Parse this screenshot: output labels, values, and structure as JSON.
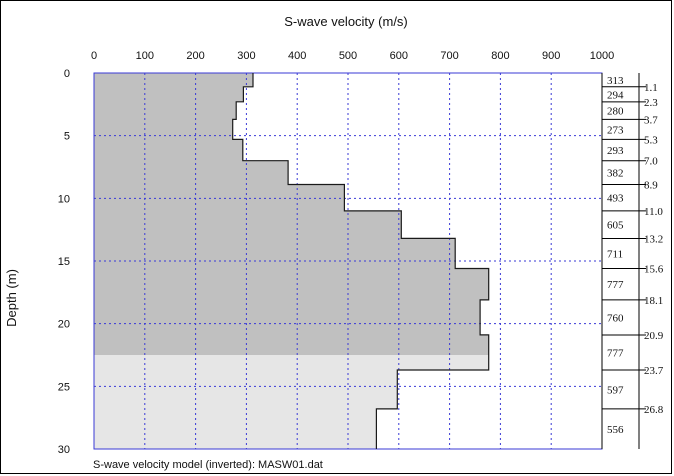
{
  "chart_data": {
    "type": "line",
    "title": "S-wave velocity (m/s)",
    "xlabel": "S-wave velocity (m/s)",
    "ylabel": "Depth (m)",
    "caption": "S-wave velocity model (inverted): MASW01.dat",
    "xlim": [
      0,
      1000
    ],
    "ylim": [
      0,
      30
    ],
    "y_inverted": true,
    "x_axis_position": "top",
    "x_ticks": [
      "0",
      "100",
      "200",
      "300",
      "400",
      "500",
      "600",
      "700",
      "800",
      "900",
      "1000"
    ],
    "y_ticks": [
      "0",
      "5",
      "10",
      "15",
      "20",
      "25",
      "30"
    ],
    "grid": true,
    "shaded_region_depth": 22.5,
    "layers": [
      {
        "top": 0.0,
        "bottom": 1.1,
        "velocity": 313
      },
      {
        "top": 1.1,
        "bottom": 2.3,
        "velocity": 294
      },
      {
        "top": 2.3,
        "bottom": 3.7,
        "velocity": 280
      },
      {
        "top": 3.7,
        "bottom": 5.3,
        "velocity": 273
      },
      {
        "top": 5.3,
        "bottom": 7.0,
        "velocity": 293
      },
      {
        "top": 7.0,
        "bottom": 8.9,
        "velocity": 382
      },
      {
        "top": 8.9,
        "bottom": 11.0,
        "velocity": 493
      },
      {
        "top": 11.0,
        "bottom": 13.2,
        "velocity": 605
      },
      {
        "top": 13.2,
        "bottom": 15.6,
        "velocity": 711
      },
      {
        "top": 15.6,
        "bottom": 18.1,
        "velocity": 777
      },
      {
        "top": 18.1,
        "bottom": 20.9,
        "velocity": 760
      },
      {
        "top": 20.9,
        "bottom": 23.7,
        "velocity": 777
      },
      {
        "top": 23.7,
        "bottom": 26.8,
        "velocity": 597
      },
      {
        "top": 26.8,
        "bottom": 30.0,
        "velocity": 556
      }
    ],
    "velocity_labels": [
      "313",
      "294",
      "280",
      "273",
      "293",
      "382",
      "493",
      "605",
      "711",
      "777",
      "760",
      "777",
      "597",
      "556"
    ],
    "depth_labels": [
      "1.1",
      "2.3",
      "3.7",
      "5.3",
      "7.0",
      "8.9",
      "11.0",
      "13.2",
      "15.6",
      "18.1",
      "20.9",
      "23.7",
      "26.8"
    ],
    "colors": {
      "fill_dark": "#c0c0c0",
      "fill_light": "#e6e6e6",
      "grid": "#3a3ad6",
      "axis": "#3a3ad6",
      "profile": "#1a1a1a"
    }
  }
}
